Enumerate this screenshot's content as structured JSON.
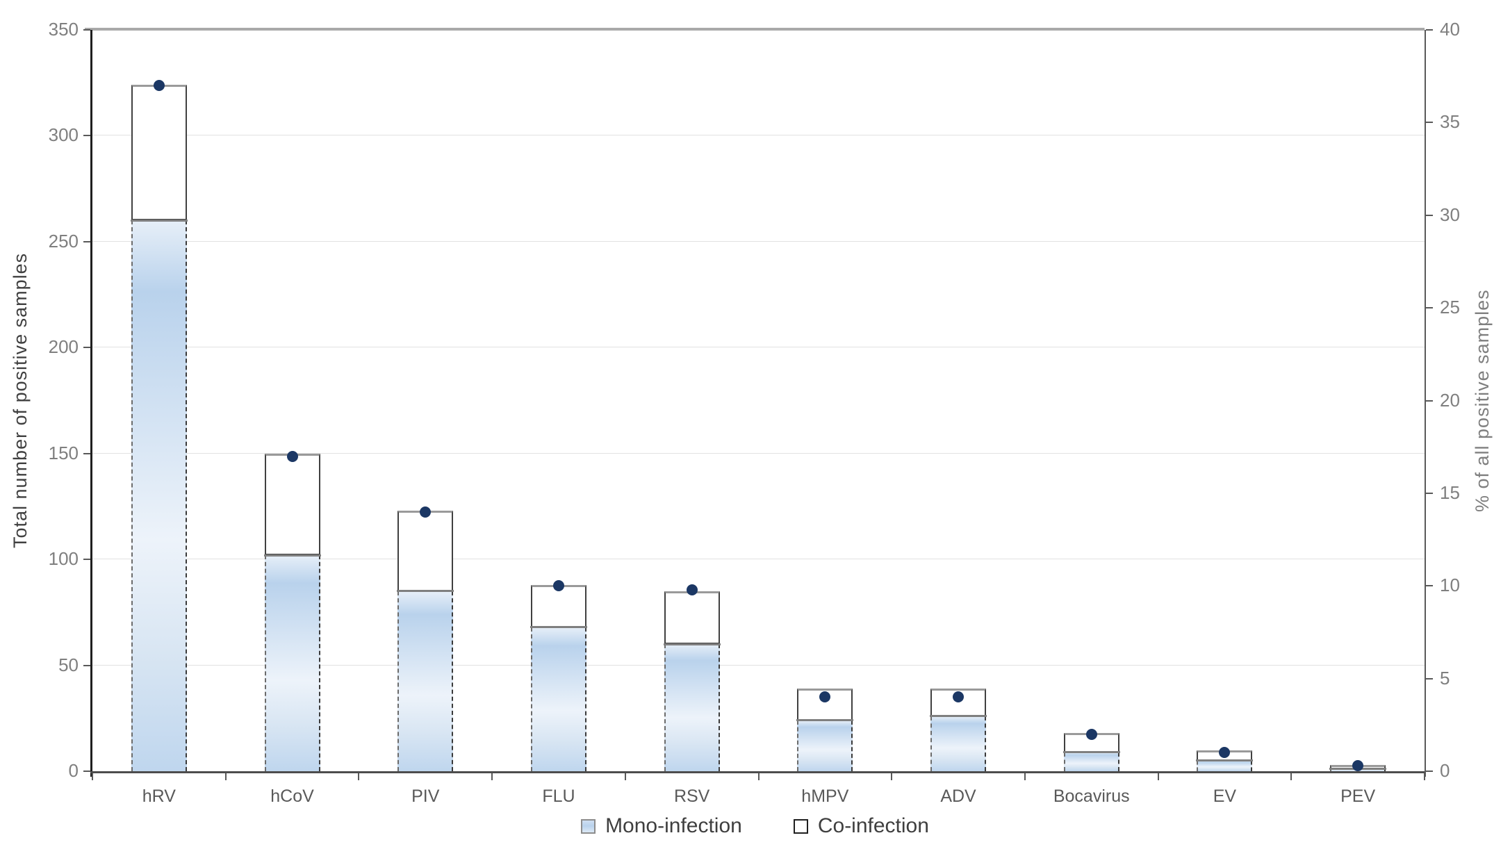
{
  "chart_data": {
    "type": "bar",
    "subtype": "stacked-bars-with-scatter-overlay",
    "categories": [
      "hRV",
      "hCoV",
      "PIV",
      "FLU",
      "RSV",
      "hMPV",
      "ADV",
      "Bocavirus",
      "EV",
      "PEV"
    ],
    "series": [
      {
        "name": "Mono-infection",
        "type": "bar",
        "stack": "total",
        "axis": "left",
        "values": [
          260,
          102,
          85,
          68,
          60,
          24,
          26,
          9,
          5,
          1
        ]
      },
      {
        "name": "Co-infection",
        "type": "bar",
        "stack": "total",
        "axis": "left",
        "values": [
          64,
          48,
          38,
          20,
          25,
          15,
          13,
          9,
          5,
          2
        ]
      },
      {
        "name": "% of all positive samples",
        "type": "scatter",
        "axis": "right",
        "values": [
          37,
          17,
          14,
          10,
          9.8,
          4,
          4,
          2,
          1,
          0.3
        ]
      }
    ],
    "stack_totals": [
      324,
      150,
      123,
      88,
      85,
      39,
      39,
      18,
      10,
      3
    ],
    "left_axis": {
      "label": "Total number of positive samples",
      "min": 0,
      "max": 350,
      "step": 50,
      "ticks": [
        0,
        50,
        100,
        150,
        200,
        250,
        300,
        350
      ]
    },
    "right_axis": {
      "label": "% of all positive samples",
      "min": 0,
      "max": 40,
      "step": 5,
      "ticks": [
        0,
        5,
        10,
        15,
        20,
        25,
        30,
        35,
        40
      ]
    },
    "legend": [
      {
        "label": "Mono-infection",
        "swatch": "mono"
      },
      {
        "label": "Co-infection",
        "swatch": "co"
      }
    ],
    "legend_position": "bottom",
    "grid": "horizontal",
    "colors": {
      "mono_fill_light": "#edf3fa",
      "mono_fill_blue": "#b9d2ec",
      "co_fill": "#ffffff",
      "bar_border": "#404040",
      "marker": "#1b3764",
      "gridline": "#e2e2e2",
      "axis_text": "#7f7f7f",
      "category_text": "#595959"
    }
  }
}
